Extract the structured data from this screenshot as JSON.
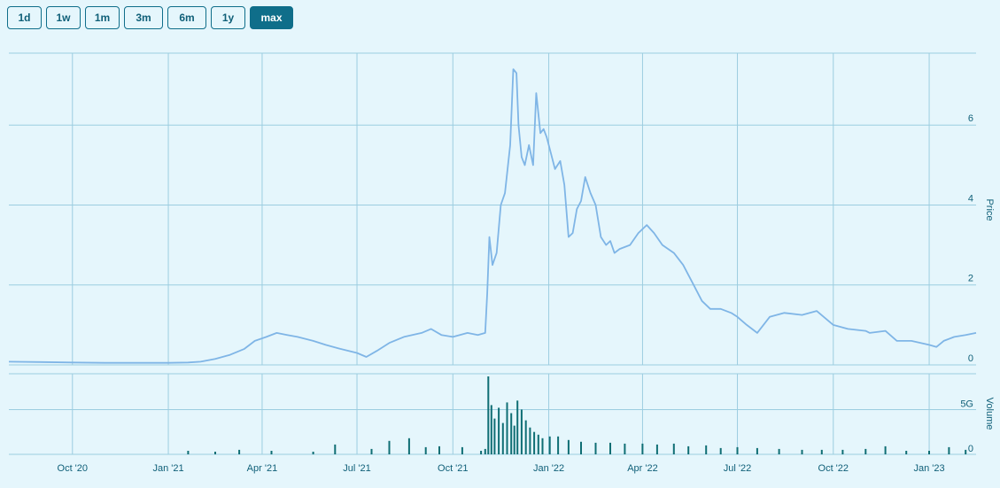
{
  "range_buttons": [
    {
      "label": "1d",
      "active": false
    },
    {
      "label": "1w",
      "active": false
    },
    {
      "label": "1m",
      "active": false
    },
    {
      "label": "3m",
      "active": false
    },
    {
      "label": "6m",
      "active": false
    },
    {
      "label": "1y",
      "active": false
    },
    {
      "label": "max",
      "active": true
    }
  ],
  "colors": {
    "background": "#e5f6fc",
    "grid": "#9ccde0",
    "price_line": "#7fb5e6",
    "volume_bar": "#0f6e74",
    "text": "#0f5f78",
    "active_button": "#0f6e8a"
  },
  "chart_data": [
    {
      "type": "line",
      "name": "price",
      "ylabel": "Price",
      "ylim": [
        0,
        7.8
      ],
      "yticks": [
        0,
        2,
        4,
        6
      ],
      "xlim": [
        "2020-08-01",
        "2023-02-15"
      ],
      "grid": true,
      "x": [
        "2020-08-01",
        "2020-09-01",
        "2020-10-01",
        "2020-11-01",
        "2020-12-01",
        "2021-01-01",
        "2021-01-20",
        "2021-02-01",
        "2021-02-15",
        "2021-03-01",
        "2021-03-15",
        "2021-03-25",
        "2021-04-05",
        "2021-04-15",
        "2021-04-25",
        "2021-05-05",
        "2021-05-20",
        "2021-06-01",
        "2021-06-15",
        "2021-07-01",
        "2021-07-10",
        "2021-07-20",
        "2021-08-01",
        "2021-08-15",
        "2021-09-01",
        "2021-09-10",
        "2021-09-20",
        "2021-10-01",
        "2021-10-15",
        "2021-10-25",
        "2021-11-01",
        "2021-11-03",
        "2021-11-05",
        "2021-11-08",
        "2021-11-12",
        "2021-11-16",
        "2021-11-20",
        "2021-11-25",
        "2021-11-28",
        "2021-12-01",
        "2021-12-03",
        "2021-12-06",
        "2021-12-09",
        "2021-12-13",
        "2021-12-17",
        "2021-12-20",
        "2021-12-24",
        "2021-12-27",
        "2021-12-30",
        "2022-01-03",
        "2022-01-07",
        "2022-01-12",
        "2022-01-16",
        "2022-01-20",
        "2022-01-24",
        "2022-01-28",
        "2022-02-01",
        "2022-02-05",
        "2022-02-10",
        "2022-02-15",
        "2022-02-20",
        "2022-02-25",
        "2022-03-01",
        "2022-03-05",
        "2022-03-10",
        "2022-03-20",
        "2022-03-28",
        "2022-04-05",
        "2022-04-12",
        "2022-04-20",
        "2022-05-01",
        "2022-05-10",
        "2022-05-20",
        "2022-05-28",
        "2022-06-05",
        "2022-06-15",
        "2022-06-25",
        "2022-07-01",
        "2022-07-10",
        "2022-07-20",
        "2022-08-01",
        "2022-08-15",
        "2022-09-01",
        "2022-09-15",
        "2022-10-01",
        "2022-10-15",
        "2022-11-01",
        "2022-11-05",
        "2022-11-20",
        "2022-12-01",
        "2022-12-15",
        "2023-01-01",
        "2023-01-08",
        "2023-01-15",
        "2023-01-25",
        "2023-02-05",
        "2023-02-15"
      ],
      "y": [
        0.08,
        0.07,
        0.06,
        0.05,
        0.05,
        0.05,
        0.06,
        0.08,
        0.15,
        0.25,
        0.4,
        0.6,
        0.7,
        0.8,
        0.75,
        0.7,
        0.6,
        0.5,
        0.4,
        0.3,
        0.2,
        0.35,
        0.55,
        0.7,
        0.8,
        0.9,
        0.75,
        0.7,
        0.8,
        0.75,
        0.8,
        1.8,
        3.2,
        2.5,
        2.8,
        4.0,
        4.3,
        5.5,
        7.4,
        7.3,
        6.0,
        5.2,
        5.0,
        5.5,
        5.0,
        6.8,
        5.8,
        5.9,
        5.7,
        5.3,
        4.9,
        5.1,
        4.5,
        3.2,
        3.3,
        3.9,
        4.1,
        4.7,
        4.3,
        4.0,
        3.2,
        3.0,
        3.1,
        2.8,
        2.9,
        3.0,
        3.3,
        3.5,
        3.3,
        3.0,
        2.8,
        2.5,
        2.0,
        1.6,
        1.4,
        1.4,
        1.3,
        1.2,
        1.0,
        0.8,
        1.2,
        1.3,
        1.25,
        1.35,
        1.0,
        0.9,
        0.85,
        0.8,
        0.85,
        0.6,
        0.6,
        0.5,
        0.45,
        0.6,
        0.7,
        0.75,
        0.8
      ]
    },
    {
      "type": "bar",
      "name": "volume",
      "ylabel": "Volume",
      "ylim": [
        0,
        9
      ],
      "yticks": [
        0,
        5
      ],
      "ytick_labels": [
        "0",
        "5G"
      ],
      "grid": true,
      "xticks": [
        "2020-10-01",
        "2021-01-01",
        "2021-04-01",
        "2021-07-01",
        "2021-10-01",
        "2022-01-01",
        "2022-04-01",
        "2022-07-01",
        "2022-10-01",
        "2023-01-01"
      ],
      "xtick_labels": [
        "Oct '20",
        "Jan '21",
        "Apr '21",
        "Jul '21",
        "Oct '21",
        "Jan '22",
        "Apr '22",
        "Jul '22",
        "Oct '22",
        "Jan '23"
      ],
      "x": [
        "2021-01-20",
        "2021-02-15",
        "2021-03-10",
        "2021-04-10",
        "2021-05-20",
        "2021-06-10",
        "2021-07-15",
        "2021-08-01",
        "2021-08-20",
        "2021-09-05",
        "2021-09-18",
        "2021-10-10",
        "2021-10-28",
        "2021-11-01",
        "2021-11-04",
        "2021-11-07",
        "2021-11-10",
        "2021-11-14",
        "2021-11-18",
        "2021-11-22",
        "2021-11-26",
        "2021-11-29",
        "2021-12-02",
        "2021-12-06",
        "2021-12-10",
        "2021-12-14",
        "2021-12-18",
        "2021-12-22",
        "2021-12-26",
        "2022-01-02",
        "2022-01-10",
        "2022-01-20",
        "2022-02-01",
        "2022-02-15",
        "2022-03-01",
        "2022-03-15",
        "2022-04-01",
        "2022-04-15",
        "2022-05-01",
        "2022-05-15",
        "2022-06-01",
        "2022-06-15",
        "2022-07-01",
        "2022-07-20",
        "2022-08-10",
        "2022-09-01",
        "2022-09-20",
        "2022-10-10",
        "2022-11-01",
        "2022-11-20",
        "2022-12-10",
        "2023-01-01",
        "2023-01-20",
        "2023-02-05"
      ],
      "y": [
        0.4,
        0.3,
        0.5,
        0.4,
        0.3,
        1.1,
        0.6,
        1.5,
        1.8,
        0.8,
        0.9,
        0.8,
        0.4,
        0.6,
        8.7,
        5.5,
        4.0,
        5.2,
        3.5,
        5.8,
        4.6,
        3.2,
        6.0,
        5.0,
        3.8,
        3.0,
        2.5,
        2.2,
        1.8,
        2.0,
        2.0,
        1.6,
        1.4,
        1.3,
        1.3,
        1.2,
        1.2,
        1.1,
        1.2,
        0.9,
        1.0,
        0.7,
        0.8,
        0.7,
        0.6,
        0.5,
        0.5,
        0.5,
        0.6,
        0.9,
        0.4,
        0.4,
        0.8,
        0.5
      ]
    }
  ]
}
